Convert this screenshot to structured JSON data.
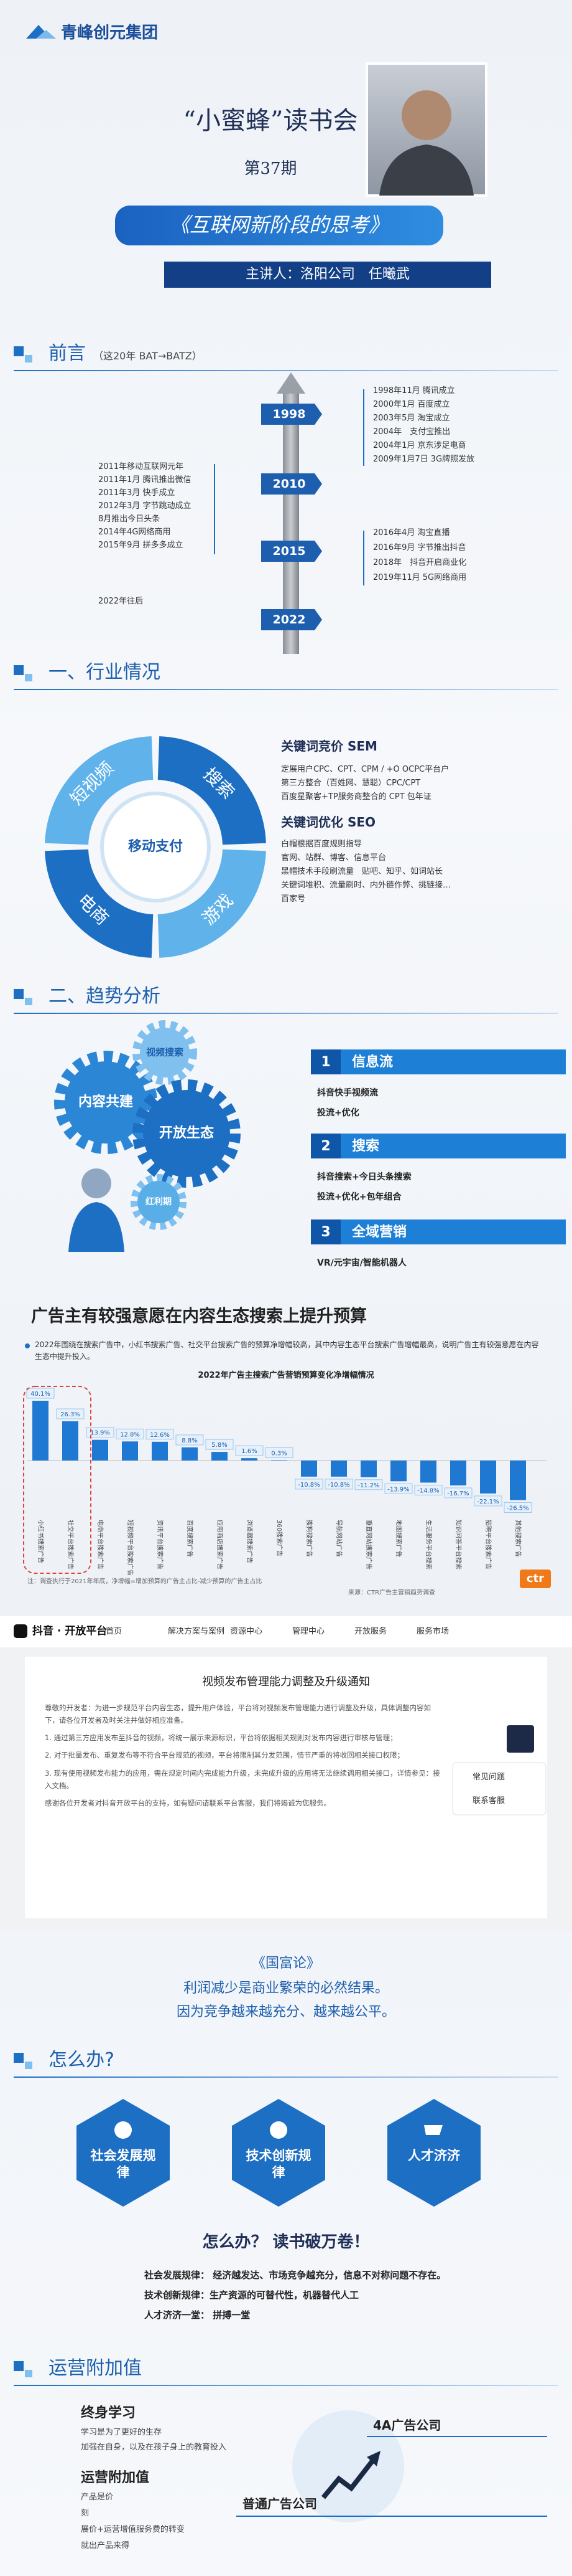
{
  "header": {
    "logo": "青峰创元集团",
    "title": "“小蜜蜂”读书会",
    "issue": "第37期",
    "topic": "《互联网新阶段的思考》",
    "speaker": "主讲人：洛阳公司　任曦武"
  },
  "preface": {
    "heading": "前言",
    "sub": "（这20年 BAT→BATZ）",
    "years": [
      "1998",
      "2010",
      "2015",
      "2022"
    ],
    "right_top": [
      "1998年11月 腾讯成立",
      "2000年1月 百度成立",
      "2003年5月 淘宝成立",
      "2004年　支付宝推出",
      "2004年1月 京东涉足电商",
      "2009年1月7日 3G牌照发放"
    ],
    "left_mid": [
      "2011年移动互联网元年",
      "2011年1月 腾讯推出微信",
      "2011年3月 快手成立",
      "2012年3月 字节跳动成立",
      "8月推出今日头条",
      "2014年4G网络商用",
      "2015年9月 拼多多成立"
    ],
    "right_mid": [
      "2016年4月 淘宝直播",
      "2016年9月 字节推出抖音",
      "2018年　抖音开启商业化",
      "2019年11月 5G网络商用"
    ],
    "left_bottom": "2022年往后"
  },
  "industry": {
    "heading": "一、行业情况",
    "ring": {
      "center": "移动支付",
      "segments": [
        "短视频",
        "搜索",
        "游戏",
        "电商"
      ]
    },
    "sem": {
      "title": "关键词竞价 SEM",
      "items": [
        "定展用户CPC、CPT、CPM / +O OCPC平台户",
        "第三方整合（百姓网、慧聪）CPC/CPT",
        "百度星聚客+TP服务商整合的 CPT 包年证"
      ]
    },
    "seo": {
      "title": "关键词优化 SEO",
      "items": [
        "白帽根据百度规则指导",
        "官网、站群、博客、信息平台",
        "黑帽技术手段刷流量　贴吧、知乎、如词站长",
        "关键词堆积、流量刷时、内外链作弊、挑链接…",
        "百家号"
      ]
    }
  },
  "trend": {
    "heading": "二、趋势分析",
    "gears": [
      "内容共建",
      "视频搜索",
      "开放生态",
      "红利期"
    ],
    "steps": [
      {
        "num": "1",
        "title": "信息流",
        "items": [
          "抖音快手视频流",
          "投流+优化"
        ]
      },
      {
        "num": "2",
        "title": "搜索",
        "items": [
          "抖音搜索+今日头条搜索",
          "投流+优化+包年组合"
        ]
      },
      {
        "num": "3",
        "title": "全域营销",
        "items": [
          "VR/元宇宙/智能机器人"
        ]
      }
    ]
  },
  "ad": {
    "heading": "广告主有较强意愿在内容生态搜索上提升预算",
    "bullet": "2022年围绕在搜索广告中，小红书搜索广告、社交平台搜索广告的预算净增幅较高，其中内容生态平台搜索广告增幅最高，说明广告主有较强意愿在内容生态中提升投入。",
    "chart_data": {
      "type": "bar",
      "title": "2022年广告主搜索广告营销预算变化净增幅情况",
      "categories": [
        "小红书搜索广告",
        "社交平台搜索广告",
        "电商平台搜索广告",
        "短视频平台搜索广告",
        "资讯平台搜索广告",
        "百度搜索广告",
        "应用商店搜索广告",
        "浏览器搜索广告",
        "360搜索广告",
        "搜狗搜索广告",
        "导航网站广告",
        "垂直网站搜索广告",
        "地图搜索广告",
        "生活服务平台搜索",
        "知识问答平台搜索",
        "招聘平台搜索广告",
        "其他搜索广告"
      ],
      "values": [
        40.1,
        26.3,
        13.9,
        12.8,
        12.6,
        8.8,
        5.8,
        1.6,
        0.3,
        -10.8,
        -10.8,
        -11.2,
        -13.9,
        -14.8,
        -16.7,
        -22.1,
        -26.5
      ],
      "value_labels": [
        "40.1%",
        "26.3%",
        "13.9%",
        "12.8%",
        "12.6%",
        "8.8%",
        "5.8%",
        "1.6%",
        "0.3%",
        "-10.8%",
        "-10.8%",
        "-11.2%",
        "-13.9%",
        "-14.8%",
        "-16.7%",
        "-22.1%",
        "-26.5%"
      ],
      "color": "#1f78d1"
    },
    "note": "注：调查执行于2021年年底，净增幅=增加预算的广告主占比-减少预算的广告主占比",
    "source": "来源：CTR广告主营销趋势调查",
    "logo": "ctr"
  },
  "notice": {
    "brand": "抖音 · 开放平台",
    "nav": [
      "首页",
      "解决方案与案例",
      "资源中心",
      "管理中心",
      "开放服务",
      "服务市场"
    ],
    "title": "视频发布管理能力调整及升级通知",
    "paragraphs": [
      "尊敬的开发者：为进一步规范平台内容生态，提升用户体验，平台将对视频发布管理能力进行调整及升级，具体调整内容如下，请各位开发者及时关注并做好相应准备。",
      "1. 通过第三方应用发布至抖音的视频，将统一展示来源标识，平台将依据相关规则对发布内容进行审核与管理；",
      "2. 对于批量发布、重复发布等不符合平台规范的视频，平台将限制其分发范围，情节严重的将收回相关接口权限；",
      "3. 现有使用视频发布能力的应用，需在规定时间内完成能力升级，未完成升级的应用将无法继续调用相关接口，详情参见：接入文档。",
      "感谢各位开发者对抖音开放平台的支持，如有疑问请联系平台客服，我们将竭诚为您服务。"
    ],
    "side": [
      "常见问题",
      "联系客服"
    ]
  },
  "quote": {
    "book": "《国富论》",
    "lines": [
      "利润减少是商业繁荣的必然结果。",
      "因为竞争越来越充分、越来越公平。"
    ]
  },
  "howto": {
    "heading": "怎么办?",
    "hexes": [
      "社会发展规律",
      "技术创新规律",
      "人才济济"
    ],
    "slogan": "怎么办？ 读书破万卷！",
    "points": [
      "社会发展规律： 经济越发达、市场竞争越充分，信息不对称问题不存在。",
      "技术创新规律：生产资源的可替代性，机器替代人工",
      "人才济济一堂： 拼搏一堂"
    ]
  },
  "ops": {
    "heading": "运营附加值",
    "learn_title": "终身学习",
    "learn_items": [
      "学习是为了更好的生存",
      "加强在自身，以及在孩子身上的教育投入"
    ],
    "value_title": "运营附加值",
    "value_items": [
      "产品是价",
      "刻",
      "展价+运营增值服务费的转变",
      "就出产品来得"
    ],
    "levels": [
      "4A广告公司",
      "普通广告公司"
    ]
  }
}
